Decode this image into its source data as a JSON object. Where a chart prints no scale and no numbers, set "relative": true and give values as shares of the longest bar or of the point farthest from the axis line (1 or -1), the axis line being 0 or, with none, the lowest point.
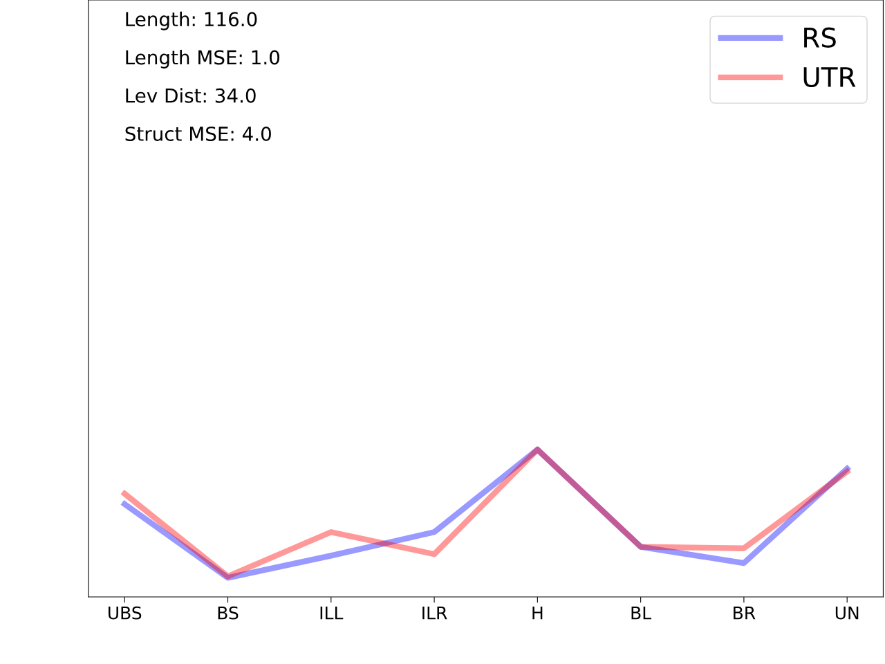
{
  "chart_data": {
    "type": "line",
    "relative": true,
    "categories": [
      "UBS",
      "BS",
      "ILL",
      "ILR",
      "H",
      "BL",
      "BR",
      "UN"
    ],
    "series": [
      {
        "name": "RS",
        "color": "#9999ff",
        "values": [
          0.63,
          0.13,
          0.28,
          0.44,
          1.0,
          0.34,
          0.23,
          0.87
        ]
      },
      {
        "name": "UTR",
        "color": "#ff9999",
        "values": [
          0.7,
          0.14,
          0.44,
          0.29,
          1.0,
          0.34,
          0.33,
          0.85
        ]
      }
    ],
    "annotations": [
      "Length: 116.0",
      "Length MSE: 1.0",
      "Lev Dist: 34.0",
      "Struct MSE: 4.0"
    ],
    "legend": "top right",
    "tick_labels": "x",
    "grid": false,
    "marker": "none",
    "line_style": "solid"
  }
}
